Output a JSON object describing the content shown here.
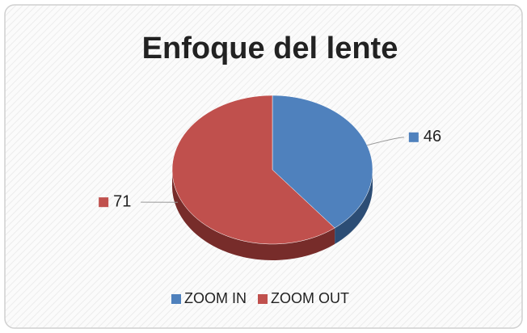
{
  "chart_data": {
    "type": "pie",
    "title": "Enfoque del lente",
    "categories": [
      "ZOOM IN",
      "ZOOM OUT"
    ],
    "values": [
      46,
      71
    ],
    "colors": [
      "#4f81bd",
      "#c0504d"
    ],
    "side_colors": [
      "#2c4d75",
      "#772c2a"
    ],
    "legend": "bottom"
  }
}
